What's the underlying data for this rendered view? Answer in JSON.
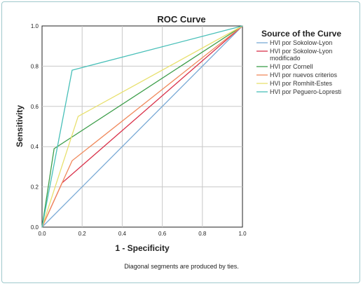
{
  "chart_data": {
    "type": "line",
    "title": "ROC Curve",
    "xlabel": "1 - Specificity",
    "ylabel": "Sensitivity",
    "xlim": [
      0,
      1
    ],
    "ylim": [
      0,
      1
    ],
    "xticks": [
      "0.0",
      "0.2",
      "0.4",
      "0.6",
      "0.8",
      "1.0"
    ],
    "yticks": [
      "0.0",
      "0.2",
      "0.4",
      "0.6",
      "0.8",
      "1.0"
    ],
    "grid": true,
    "legend_title": "Source of the Curve",
    "legend_position": "right",
    "footnote": "Diagonal segments are produced by ties.",
    "series": [
      {
        "name": "HVI por Sokolow-Lyon",
        "color": "#7aaad6",
        "points": [
          [
            0,
            0
          ],
          [
            1,
            1
          ]
        ]
      },
      {
        "name": "HVI por Sokolow-Lyon modificado",
        "color": "#d9324a",
        "points": [
          [
            0,
            0
          ],
          [
            0.1,
            0.22
          ],
          [
            1,
            1
          ]
        ]
      },
      {
        "name": "HVI por Cornell",
        "color": "#3d9e4a",
        "points": [
          [
            0,
            0
          ],
          [
            0.06,
            0.39
          ],
          [
            1,
            1
          ]
        ]
      },
      {
        "name": "HVI por nuevos criterios",
        "color": "#f08a5d",
        "points": [
          [
            0,
            0
          ],
          [
            0.15,
            0.33
          ],
          [
            1,
            1
          ]
        ]
      },
      {
        "name": "HVI por Romhilt-Estes",
        "color": "#e8e06e",
        "points": [
          [
            0,
            0
          ],
          [
            0.18,
            0.55
          ],
          [
            1,
            1
          ]
        ]
      },
      {
        "name": "HVI por Peguero-Lopresti",
        "color": "#47bfb8",
        "points": [
          [
            0,
            0
          ],
          [
            0.15,
            0.78
          ],
          [
            1,
            1
          ]
        ]
      }
    ]
  }
}
